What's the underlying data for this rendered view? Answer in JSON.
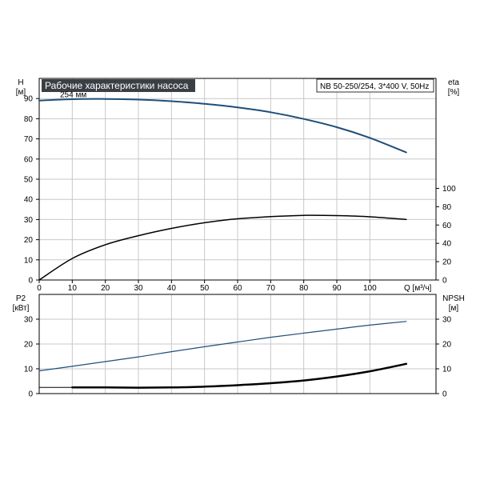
{
  "chart_data": [
    {
      "id": "head-eta",
      "type": "line",
      "title": "Рабочие характеристики насоса",
      "info": "NB 50-250/254, 3*400 V, 50Hz",
      "xlabel": "Q [м³/ч]",
      "xlim": [
        0,
        120
      ],
      "xticks": [
        0,
        10,
        20,
        30,
        40,
        50,
        60,
        70,
        80,
        90,
        100
      ],
      "left_axis": {
        "label": "H",
        "unit": "[м]",
        "lim": [
          0,
          100
        ],
        "ticks": [
          0,
          10,
          20,
          30,
          40,
          50,
          60,
          70,
          80,
          90
        ]
      },
      "right_axis": {
        "label": "eta",
        "unit": "[%]",
        "lim": [
          0,
          220
        ],
        "ticks": [
          0,
          20,
          40,
          60,
          80,
          100
        ]
      },
      "grid": true,
      "series": [
        {
          "name": "254 мм",
          "axis": "left",
          "color": "#1f4e79",
          "width": 2,
          "x": [
            0,
            10,
            20,
            30,
            40,
            50,
            60,
            70,
            80,
            90,
            100,
            111
          ],
          "y": [
            89,
            89.7,
            89.8,
            89.5,
            88.7,
            87.4,
            85.6,
            83.2,
            79.9,
            75.8,
            70.5,
            63.3
          ]
        },
        {
          "axis": "right",
          "color": "#000000",
          "width": 1.5,
          "x": [
            0,
            10,
            20,
            30,
            40,
            50,
            60,
            70,
            80,
            90,
            100,
            111
          ],
          "y": [
            0,
            23.5,
            38.5,
            48.4,
            56.3,
            62.5,
            66.8,
            69.1,
            70.5,
            70.3,
            69,
            66
          ]
        }
      ]
    },
    {
      "id": "power-npsh",
      "type": "line",
      "xlim": [
        0,
        120
      ],
      "left_axis": {
        "label": "P2",
        "unit": "[кВт]",
        "lim": [
          0,
          40
        ],
        "ticks": [
          0,
          10,
          20,
          30
        ]
      },
      "right_axis": {
        "label": "NPSH",
        "unit": "[м]",
        "lim": [
          0,
          40
        ],
        "ticks": [
          0,
          10,
          20,
          30
        ]
      },
      "grid": true,
      "series": [
        {
          "axis": "left",
          "color": "#1f4e79",
          "width": 1.2,
          "x": [
            0,
            10,
            20,
            30,
            40,
            50,
            60,
            70,
            80,
            90,
            100,
            111
          ],
          "y": [
            9.2,
            11,
            12.9,
            14.8,
            16.9,
            18.9,
            20.8,
            22.7,
            24.4,
            26,
            27.6,
            29.1
          ]
        },
        {
          "axis": "right",
          "color": "#000000",
          "width": 2.5,
          "x": [
            10,
            20,
            30,
            40,
            50,
            60,
            70,
            80,
            90,
            100,
            111
          ],
          "y": [
            2.5,
            2.5,
            2.4,
            2.5,
            2.8,
            3.4,
            4.2,
            5.3,
            6.9,
            9,
            12
          ]
        },
        {
          "axis": "right",
          "color": "#000000",
          "width": 1,
          "x": [
            0,
            10
          ],
          "y": [
            2.5,
            2.5
          ]
        }
      ]
    }
  ]
}
